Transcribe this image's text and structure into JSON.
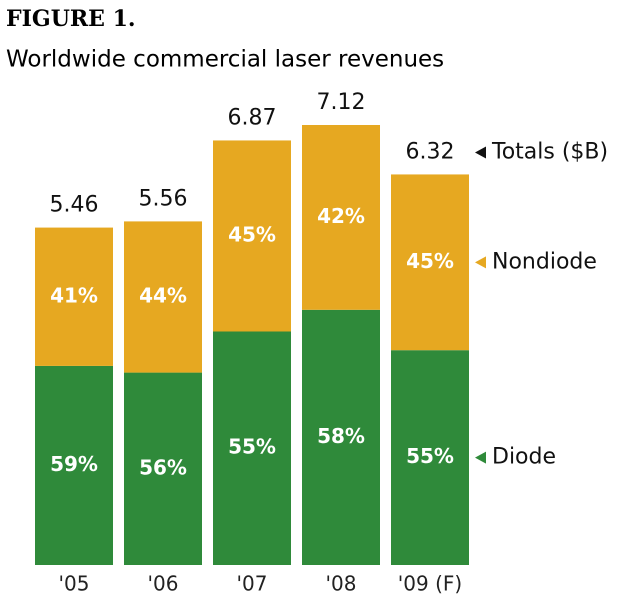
{
  "chart_data": {
    "type": "bar",
    "title": "FIGURE 1.",
    "subtitle": "Worldwide commercial laser revenues",
    "categories": [
      "'05",
      "'06",
      "'07",
      "'08",
      "'09 (F)"
    ],
    "totals": {
      "name": "Totals ($B)",
      "color": "#111111",
      "values": [
        5.46,
        5.56,
        6.87,
        7.12,
        6.32
      ]
    },
    "series": [
      {
        "name": "Diode",
        "color": "#2f8a3a",
        "values": [
          59,
          56,
          55,
          58,
          55
        ],
        "value_labels": [
          "59%",
          "56%",
          "55%",
          "58%",
          "55%"
        ]
      },
      {
        "name": "Nondiode",
        "color": "#e6a821",
        "values": [
          41,
          44,
          45,
          42,
          45
        ],
        "value_labels": [
          "41%",
          "44%",
          "45%",
          "42%",
          "45%"
        ]
      }
    ]
  }
}
